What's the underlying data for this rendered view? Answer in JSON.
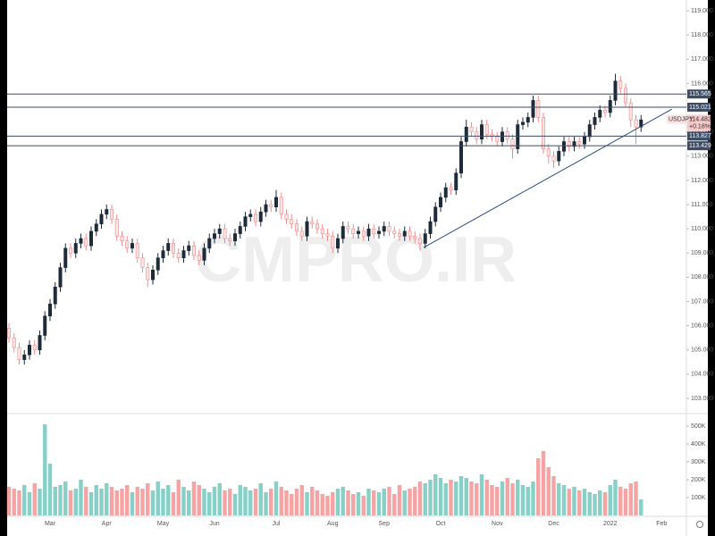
{
  "chart_data": {
    "type": "candlestick",
    "symbol": "USDJPY",
    "last_price": 114.482,
    "change_text": "+0.18%",
    "watermark": "CMPRO.IR",
    "up_color": "#1f2b3a",
    "down_color": "#f08a8a",
    "volume_up_color": "#86d0c7",
    "volume_down_color": "#f5a3a3",
    "level_color": "#3d4b63",
    "trendline_color": "#2c4a7c",
    "categories": [
      null,
      null,
      null,
      null,
      null,
      null,
      null,
      null,
      "Mar",
      null,
      null,
      null,
      null,
      null,
      null,
      null,
      null,
      null,
      null,
      "Apr",
      null,
      null,
      null,
      null,
      null,
      null,
      null,
      null,
      null,
      null,
      "May",
      null,
      null,
      null,
      null,
      null,
      null,
      null,
      null,
      null,
      "Jun",
      null,
      null,
      null,
      null,
      null,
      null,
      null,
      null,
      null,
      null,
      null,
      "Jul",
      null,
      null,
      null,
      null,
      null,
      null,
      null,
      null,
      null,
      null,
      "Aug",
      null,
      null,
      null,
      null,
      null,
      null,
      null,
      null,
      null,
      "Sep",
      null,
      null,
      null,
      null,
      null,
      null,
      null,
      null,
      null,
      null,
      "Oct",
      null,
      null,
      null,
      null,
      null,
      null,
      null,
      null,
      null,
      null,
      "Nov",
      null,
      null,
      null,
      null,
      null,
      null,
      null,
      null,
      null,
      null,
      "Dec",
      null,
      null,
      null,
      null,
      null,
      null,
      null,
      null,
      null,
      null,
      "2022",
      null,
      null,
      null,
      null,
      null,
      null,
      null,
      null,
      null,
      "Feb"
    ],
    "open": [
      105.9,
      105.5,
      105.1,
      104.6,
      104.8,
      105.2,
      105.0,
      105.6,
      106.4,
      106.9,
      107.6,
      108.4,
      109.2,
      109.0,
      109.4,
      109.6,
      109.3,
      109.9,
      110.2,
      110.6,
      110.8,
      110.4,
      109.7,
      109.5,
      109.2,
      109.4,
      108.8,
      108.4,
      107.9,
      108.3,
      108.8,
      109.1,
      109.4,
      109.0,
      108.8,
      109.1,
      109.3,
      108.9,
      108.7,
      109.2,
      109.6,
      109.8,
      110.0,
      109.6,
      109.5,
      109.8,
      110.1,
      110.5,
      110.6,
      110.3,
      110.7,
      111.0,
      110.9,
      111.3,
      110.6,
      110.4,
      110.2,
      109.9,
      109.7,
      110.3,
      110.2,
      110.0,
      109.8,
      109.7,
      109.2,
      109.6,
      110.1,
      110.0,
      109.8,
      109.9,
      109.7,
      110.0,
      109.8,
      109.9,
      110.1,
      109.9,
      109.8,
      109.7,
      109.9,
      109.7,
      109.6,
      109.4,
      109.8,
      110.3,
      110.9,
      111.3,
      111.7,
      111.6,
      112.3,
      113.6,
      114.2,
      114.0,
      113.7,
      114.3,
      113.9,
      113.8,
      113.6,
      114.0,
      113.7,
      113.3,
      114.3,
      114.4,
      114.6,
      115.3,
      114.6,
      113.3,
      113.0,
      112.8,
      113.2,
      113.6,
      113.4,
      113.6,
      113.5,
      113.8,
      114.3,
      114.6,
      114.9,
      114.8,
      115.3,
      116.1,
      115.8,
      115.2,
      114.5,
      114.2,
      null,
      null,
      null,
      null
    ],
    "high": [
      106.1,
      105.7,
      105.3,
      105.0,
      105.4,
      105.4,
      105.8,
      106.6,
      107.1,
      107.8,
      108.6,
      109.4,
      109.4,
      109.6,
      109.8,
      109.8,
      110.1,
      110.4,
      110.8,
      111.0,
      111.0,
      110.6,
      109.9,
      109.7,
      109.6,
      109.6,
      109.0,
      108.6,
      108.5,
      109.0,
      109.3,
      109.6,
      109.6,
      109.2,
      109.3,
      109.5,
      109.5,
      109.1,
      109.4,
      109.8,
      110.0,
      110.2,
      110.2,
      109.8,
      110.0,
      110.3,
      110.7,
      110.8,
      110.8,
      110.9,
      111.2,
      111.2,
      111.6,
      111.5,
      110.8,
      110.6,
      110.4,
      110.1,
      110.5,
      110.5,
      110.4,
      110.2,
      110.0,
      109.9,
      109.8,
      110.3,
      110.3,
      110.2,
      110.1,
      110.1,
      110.2,
      110.2,
      110.1,
      110.3,
      110.3,
      110.1,
      110.0,
      110.1,
      110.1,
      109.9,
      109.8,
      110.0,
      110.5,
      111.1,
      111.5,
      111.9,
      111.9,
      112.5,
      113.8,
      114.5,
      114.4,
      114.2,
      114.5,
      114.5,
      114.1,
      114.0,
      114.2,
      114.2,
      113.9,
      114.5,
      114.6,
      114.8,
      115.5,
      115.5,
      114.8,
      113.5,
      113.2,
      113.4,
      113.8,
      113.8,
      113.8,
      113.8,
      114.0,
      114.5,
      114.8,
      115.1,
      115.1,
      115.5,
      116.4,
      116.3,
      116.0,
      115.4,
      114.7,
      114.7,
      null,
      null,
      null,
      null
    ],
    "low": [
      105.3,
      104.9,
      104.4,
      104.4,
      104.6,
      104.8,
      104.8,
      105.4,
      106.2,
      106.7,
      107.4,
      108.2,
      108.8,
      108.8,
      109.2,
      109.1,
      109.1,
      109.7,
      110.0,
      110.4,
      110.2,
      109.5,
      109.3,
      109.0,
      109.0,
      108.6,
      108.2,
      107.6,
      107.7,
      108.1,
      108.6,
      108.9,
      108.8,
      108.6,
      108.6,
      108.9,
      108.7,
      108.5,
      108.5,
      109.0,
      109.4,
      109.6,
      109.4,
      109.3,
      109.3,
      109.6,
      109.9,
      110.3,
      110.1,
      110.1,
      110.5,
      110.7,
      110.7,
      110.4,
      110.2,
      110.0,
      109.7,
      109.5,
      109.5,
      110.0,
      109.8,
      109.6,
      109.5,
      109.0,
      109.0,
      109.4,
      109.8,
      109.6,
      109.6,
      109.5,
      109.5,
      109.6,
      109.6,
      109.7,
      109.7,
      109.6,
      109.5,
      109.5,
      109.5,
      109.4,
      109.1,
      109.2,
      109.6,
      110.1,
      110.7,
      111.1,
      111.4,
      111.4,
      112.1,
      113.4,
      113.8,
      113.5,
      113.5,
      113.7,
      113.6,
      113.4,
      113.4,
      113.5,
      112.9,
      113.1,
      114.1,
      114.2,
      114.4,
      114.4,
      113.1,
      112.7,
      112.5,
      112.6,
      113.0,
      113.2,
      113.2,
      113.3,
      113.3,
      113.6,
      114.1,
      114.4,
      114.6,
      114.6,
      115.1,
      115.6,
      115.0,
      114.2,
      113.5,
      114.0,
      null,
      null,
      null,
      null
    ],
    "close": [
      105.5,
      105.1,
      104.6,
      104.8,
      105.2,
      105.0,
      105.6,
      106.4,
      106.9,
      107.6,
      108.4,
      109.2,
      109.0,
      109.4,
      109.6,
      109.3,
      109.9,
      110.2,
      110.6,
      110.8,
      110.4,
      109.7,
      109.5,
      109.2,
      109.4,
      108.8,
      108.4,
      107.9,
      108.3,
      108.8,
      109.1,
      109.4,
      109.0,
      108.8,
      109.1,
      109.3,
      108.9,
      108.7,
      109.2,
      109.6,
      109.8,
      110.0,
      109.6,
      109.5,
      109.8,
      110.1,
      110.5,
      110.6,
      110.3,
      110.7,
      111.0,
      110.9,
      111.3,
      110.6,
      110.4,
      110.2,
      109.9,
      109.7,
      110.3,
      110.2,
      110.0,
      109.8,
      109.7,
      109.2,
      109.6,
      110.1,
      110.0,
      109.8,
      109.9,
      109.7,
      110.0,
      109.8,
      109.9,
      110.1,
      109.9,
      109.8,
      109.7,
      109.9,
      109.7,
      109.6,
      109.4,
      109.8,
      110.3,
      110.9,
      111.3,
      111.7,
      111.6,
      112.3,
      113.6,
      114.2,
      114.0,
      113.7,
      114.3,
      113.9,
      113.8,
      113.6,
      114.0,
      113.7,
      113.3,
      114.3,
      114.4,
      114.6,
      115.3,
      114.6,
      113.3,
      113.0,
      112.8,
      113.2,
      113.6,
      113.4,
      113.6,
      113.5,
      113.8,
      114.3,
      114.6,
      114.9,
      114.8,
      115.3,
      116.1,
      115.8,
      115.2,
      114.5,
      114.2,
      114.5,
      null,
      null,
      null,
      null
    ],
    "volume": [
      160000,
      150000,
      140000,
      170000,
      130000,
      180000,
      150000,
      510000,
      290000,
      160000,
      170000,
      190000,
      140000,
      150000,
      200000,
      160000,
      130000,
      170000,
      150000,
      180000,
      160000,
      140000,
      150000,
      170000,
      130000,
      160000,
      150000,
      180000,
      140000,
      190000,
      150000,
      170000,
      130000,
      200000,
      160000,
      140000,
      190000,
      170000,
      150000,
      130000,
      160000,
      180000,
      140000,
      150000,
      120000,
      170000,
      160000,
      140000,
      150000,
      180000,
      130000,
      150000,
      190000,
      160000,
      140000,
      120000,
      150000,
      170000,
      130000,
      160000,
      140000,
      120000,
      110000,
      130000,
      150000,
      160000,
      140000,
      120000,
      130000,
      110000,
      150000,
      140000,
      130000,
      150000,
      160000,
      120000,
      170000,
      140000,
      150000,
      160000,
      190000,
      180000,
      200000,
      230000,
      210000,
      180000,
      200000,
      190000,
      220000,
      210000,
      190000,
      180000,
      230000,
      200000,
      170000,
      160000,
      190000,
      210000,
      180000,
      200000,
      170000,
      160000,
      190000,
      320000,
      360000,
      270000,
      220000,
      180000,
      170000,
      150000,
      160000,
      140000,
      150000,
      130000,
      120000,
      140000,
      130000,
      170000,
      200000,
      160000,
      150000,
      180000,
      190000,
      90000,
      null,
      null,
      null,
      null
    ],
    "ylim": [
      102.41,
      119.15
    ],
    "yticks": [
      {
        "value": 103,
        "label": "103.000"
      },
      {
        "value": 104,
        "label": "104.000"
      },
      {
        "value": 105,
        "label": "105.000"
      },
      {
        "value": 106,
        "label": "106.000"
      },
      {
        "value": 107,
        "label": "107.000"
      },
      {
        "value": 108,
        "label": "108.000"
      },
      {
        "value": 109,
        "label": "109.000"
      },
      {
        "value": 110,
        "label": "110.000"
      },
      {
        "value": 111,
        "label": "111.000"
      },
      {
        "value": 112,
        "label": "112.000"
      },
      {
        "value": 113,
        "label": "113.000"
      },
      {
        "value": 114,
        "label": "114.000"
      },
      {
        "value": 116,
        "label": "116.000"
      },
      {
        "value": 117,
        "label": "117.000"
      },
      {
        "value": 118,
        "label": "118.000"
      },
      {
        "value": 119,
        "label": "119.000"
      }
    ],
    "volume_ylim": [
      0,
      570000
    ],
    "volume_yticks": [
      {
        "value": 100000,
        "label": "100K"
      },
      {
        "value": 200000,
        "label": "200K"
      },
      {
        "value": 300000,
        "label": "300K"
      },
      {
        "value": 400000,
        "label": "400K"
      },
      {
        "value": 500000,
        "label": "500K"
      }
    ],
    "levels": [
      115.565,
      115.021,
      113.827,
      113.429
    ],
    "trendline": {
      "x": [
        80.7,
        129.0
      ],
      "y": [
        109.23,
        114.94
      ]
    }
  }
}
